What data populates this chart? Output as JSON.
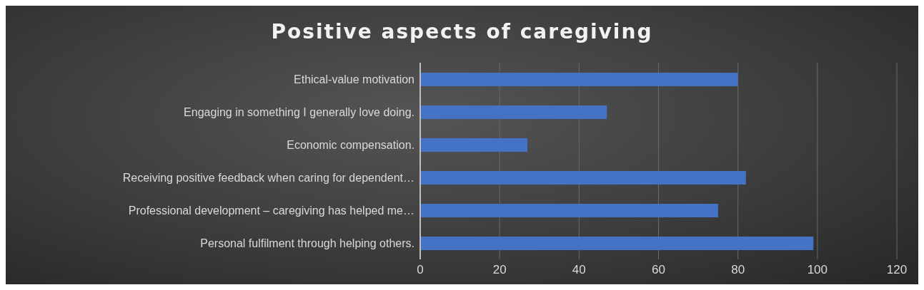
{
  "chart_data": {
    "type": "bar",
    "orientation": "horizontal",
    "title": "Positive aspects of caregiving",
    "categories": [
      "Ethical-value motivation",
      "Engaging in something I generally love doing.",
      "Economic compensation.",
      "Receiving positive feedback when caring for dependent…",
      "Professional development – caregiving has helped me…",
      "Personal fulfilment through helping others."
    ],
    "values": [
      80,
      47,
      27,
      82,
      75,
      99
    ],
    "color": "#4472c4",
    "xlim": [
      0,
      120
    ],
    "xticks": [
      0,
      20,
      40,
      60,
      80,
      100,
      120
    ],
    "grid": "x"
  }
}
